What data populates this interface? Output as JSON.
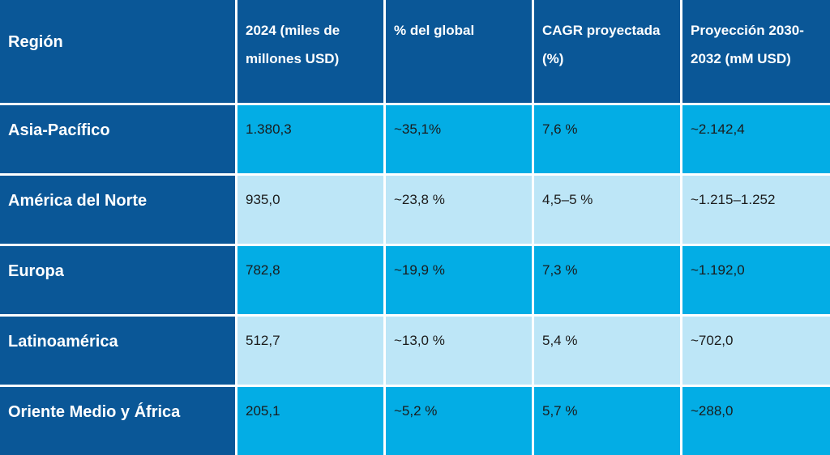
{
  "table": {
    "headers": [
      "Región",
      "2024 (miles de millones USD)",
      "% del global",
      "CAGR proyectada (%)",
      "Proyección 2030-2032 (mM USD)"
    ],
    "rows": [
      {
        "region": "Asia-Pacífico",
        "value_2024": "1.380,3",
        "share": "~35,1%",
        "cagr": "7,6 %",
        "projection": "~2.142,4"
      },
      {
        "region": "América del Norte",
        "value_2024": "935,0",
        "share": "~23,8 %",
        "cagr": "4,5–5 %",
        "projection": "~1.215–1.252"
      },
      {
        "region": "Europa",
        "value_2024": "782,8",
        "share": "~19,9 %",
        "cagr": "7,3 %",
        "projection": "~1.192,0"
      },
      {
        "region": "Latinoamérica",
        "value_2024": "512,7",
        "share": "~13,0 %",
        "cagr": "5,4 %",
        "projection": "~702,0"
      },
      {
        "region": "Oriente Medio y África",
        "value_2024": "205,1",
        "share": "~5,2 %",
        "cagr": "5,7 %",
        "projection": "~288,0"
      }
    ]
  },
  "colors": {
    "header_bg": "#0a5797",
    "row_dark": "#03ade5",
    "row_light": "#bde6f7"
  }
}
